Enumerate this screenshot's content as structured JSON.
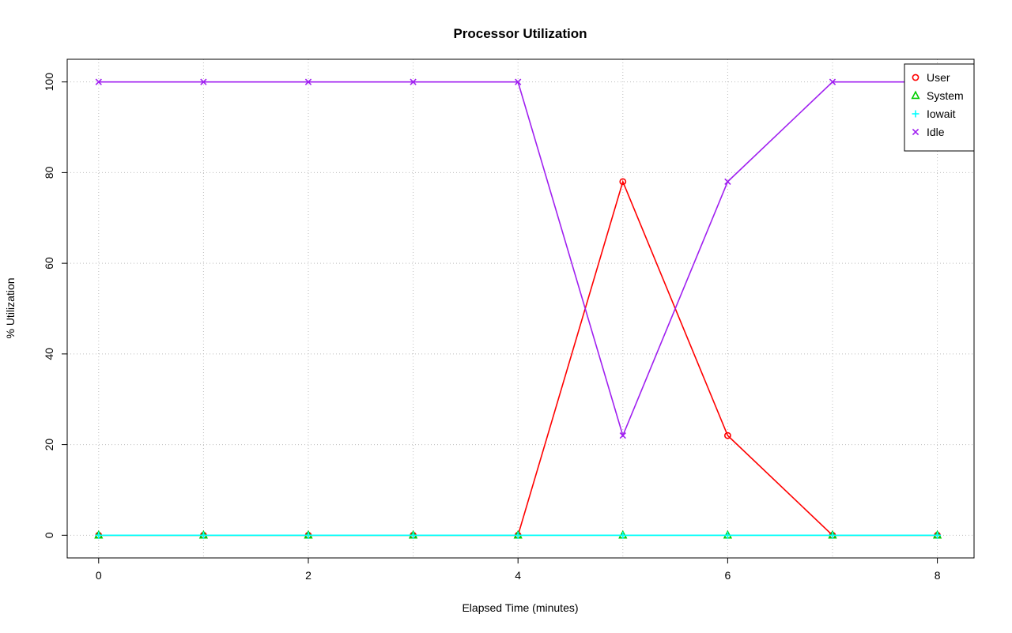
{
  "chart_data": {
    "type": "line",
    "title": "Processor Utilization",
    "xlabel": "Elapsed Time (minutes)",
    "ylabel": "% Utilization",
    "x": [
      0,
      1,
      2,
      3,
      4,
      5,
      6,
      7,
      8
    ],
    "series": [
      {
        "name": "User",
        "color": "#ff0000",
        "marker": "circle",
        "values": [
          0,
          0,
          0,
          0,
          0,
          78,
          22,
          0,
          0
        ]
      },
      {
        "name": "System",
        "color": "#00cd00",
        "marker": "triangle",
        "values": [
          0,
          0,
          0,
          0,
          0,
          0,
          0,
          0,
          0
        ]
      },
      {
        "name": "Iowait",
        "color": "#00ffff",
        "marker": "plus",
        "values": [
          0,
          0,
          0,
          0,
          0,
          0,
          0,
          0,
          0
        ]
      },
      {
        "name": "Idle",
        "color": "#a020f0",
        "marker": "x",
        "values": [
          100,
          100,
          100,
          100,
          100,
          22,
          78,
          100,
          100
        ]
      }
    ],
    "x_ticks": [
      0,
      2,
      4,
      6,
      8
    ],
    "y_ticks": [
      0,
      20,
      40,
      60,
      80,
      100
    ],
    "xlim": [
      -0.3,
      8.35
    ],
    "ylim": [
      -5,
      105
    ],
    "grid": {
      "show": true,
      "color": "#bdbdbd",
      "style": "dotted",
      "x_lines": [
        0,
        1,
        2,
        3,
        4,
        5,
        6,
        7,
        8
      ],
      "y_lines": [
        0,
        20,
        40,
        60,
        80,
        100
      ]
    },
    "legend": {
      "position": "top-right",
      "entries": [
        "User",
        "System",
        "Iowait",
        "Idle"
      ]
    }
  }
}
